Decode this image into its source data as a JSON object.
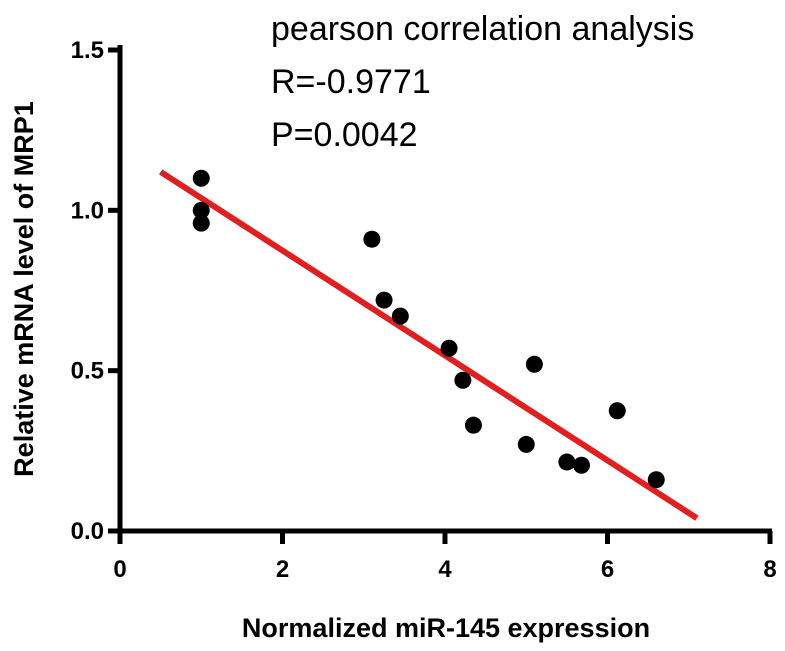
{
  "chart_data": {
    "type": "scatter",
    "xlabel": "Normalized miR-145 expression",
    "ylabel": "Relative mRNA level of MRP1",
    "xlim": [
      0,
      8
    ],
    "ylim": [
      0,
      1.5
    ],
    "xticks": [
      "0",
      "2",
      "4",
      "6",
      "8"
    ],
    "yticks": [
      "0.0",
      "0.5",
      "1.0",
      "1.5"
    ],
    "annotations": [
      "pearson correlation analysis",
      "R=-0.9771",
      "P=0.0042"
    ],
    "grid": false,
    "points": [
      {
        "x": 1.0,
        "y": 1.1
      },
      {
        "x": 1.0,
        "y": 1.0
      },
      {
        "x": 1.0,
        "y": 0.96
      },
      {
        "x": 3.1,
        "y": 0.91
      },
      {
        "x": 3.25,
        "y": 0.72
      },
      {
        "x": 3.45,
        "y": 0.67
      },
      {
        "x": 4.05,
        "y": 0.57
      },
      {
        "x": 4.22,
        "y": 0.47
      },
      {
        "x": 4.35,
        "y": 0.33
      },
      {
        "x": 5.0,
        "y": 0.27
      },
      {
        "x": 5.1,
        "y": 0.52
      },
      {
        "x": 5.5,
        "y": 0.215
      },
      {
        "x": 5.68,
        "y": 0.205
      },
      {
        "x": 6.12,
        "y": 0.375
      },
      {
        "x": 6.6,
        "y": 0.16
      }
    ],
    "fit_line": {
      "x": [
        0.5,
        7.1
      ],
      "y": [
        1.12,
        0.04
      ]
    },
    "colors": {
      "points": "#000000",
      "fit_line": "#e02020",
      "axes": "#000000"
    }
  }
}
